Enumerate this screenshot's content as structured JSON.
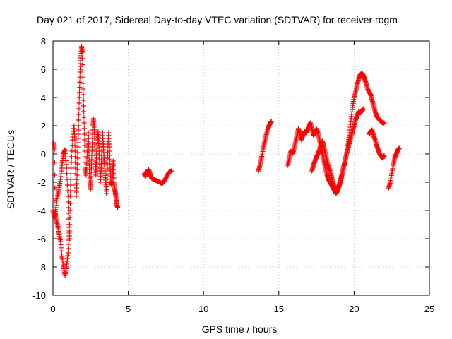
{
  "chart_data": {
    "type": "scatter",
    "title": "Day 021 of 2017, Sidereal Day-to-day VTEC variation (SDTVAR) for receiver rogm",
    "xlabel": "GPS time / hours",
    "ylabel": "SDTVAR / TECUs",
    "xlim": [
      0,
      25
    ],
    "ylim": [
      -10,
      8
    ],
    "xticks": [
      0,
      5,
      10,
      15,
      20,
      25
    ],
    "yticks": [
      -10,
      -8,
      -6,
      -4,
      -2,
      0,
      2,
      4,
      6,
      8
    ],
    "grid": true,
    "marker": "plus",
    "color": "#ff0000",
    "series": [
      {
        "name": "SDTVAR",
        "segments": [
          [
            [
              0.05,
              0.8
            ],
            [
              0.1,
              0.3
            ],
            [
              0.15,
              -4.2
            ],
            [
              0.2,
              -4.6
            ],
            [
              0.3,
              -5.0
            ],
            [
              0.4,
              -5.6
            ],
            [
              0.5,
              -6.2
            ],
            [
              0.6,
              -7.3
            ],
            [
              0.7,
              -8.0
            ],
            [
              0.8,
              -8.6
            ],
            [
              0.9,
              -8.0
            ],
            [
              1.0,
              -7.0
            ],
            [
              1.1,
              -5.5
            ],
            [
              1.15,
              -3.0
            ],
            [
              1.2,
              -1.0
            ],
            [
              1.3,
              1.0
            ],
            [
              1.4,
              2.0
            ],
            [
              1.45,
              1.0
            ],
            [
              1.5,
              -1.0
            ],
            [
              1.55,
              -3.0
            ],
            [
              1.6,
              -1.5
            ],
            [
              1.65,
              0.5
            ],
            [
              1.7,
              2.0
            ],
            [
              1.75,
              4.0
            ],
            [
              1.8,
              5.8
            ],
            [
              1.85,
              6.8
            ],
            [
              1.9,
              7.6
            ],
            [
              1.95,
              7.2
            ],
            [
              2.0,
              5.0
            ],
            [
              2.05,
              3.0
            ],
            [
              2.1,
              1.0
            ],
            [
              2.15,
              -1.0
            ],
            [
              2.2,
              -1.5
            ],
            [
              2.3,
              0.5
            ],
            [
              2.35,
              1.5
            ],
            [
              2.4,
              -0.5
            ],
            [
              2.45,
              -2.0
            ],
            [
              2.5,
              -2.5
            ],
            [
              2.55,
              -1.0
            ],
            [
              2.6,
              0.5
            ],
            [
              2.65,
              2.0
            ],
            [
              2.7,
              2.5
            ],
            [
              2.75,
              1.5
            ],
            [
              2.8,
              -0.5
            ],
            [
              2.85,
              -1.5
            ],
            [
              2.9,
              0.0
            ],
            [
              2.95,
              1.0
            ],
            [
              3.0,
              1.6
            ],
            [
              3.05,
              0.5
            ],
            [
              3.1,
              -1.0
            ],
            [
              3.15,
              -2.0
            ],
            [
              3.2,
              -1.0
            ],
            [
              3.25,
              0.5
            ],
            [
              3.3,
              1.5
            ],
            [
              3.35,
              0.5
            ],
            [
              3.4,
              -0.5
            ],
            [
              3.45,
              -1.2
            ],
            [
              3.5,
              -2.0
            ],
            [
              3.55,
              -2.8
            ],
            [
              3.6,
              -1.5
            ],
            [
              3.65,
              0.5
            ],
            [
              3.7,
              1.5
            ],
            [
              3.75,
              0.5
            ],
            [
              3.8,
              -1.0
            ],
            [
              3.85,
              -2.0
            ],
            [
              3.9,
              -2.2
            ],
            [
              3.95,
              -1.5
            ],
            [
              4.0,
              -0.5
            ],
            [
              4.05,
              -2.0
            ],
            [
              4.1,
              -2.5
            ],
            [
              4.15,
              -2.8
            ],
            [
              4.2,
              -3.2
            ],
            [
              4.25,
              -3.6
            ],
            [
              4.3,
              -3.8
            ]
          ],
          [
            [
              0.0,
              -4.0
            ],
            [
              0.1,
              -4.5
            ],
            [
              0.2,
              -3.8
            ],
            [
              0.3,
              -3.0
            ],
            [
              0.4,
              -2.5
            ],
            [
              0.5,
              -1.8
            ],
            [
              0.6,
              -0.8
            ],
            [
              0.7,
              0.0
            ],
            [
              0.8,
              0.3
            ],
            [
              0.9,
              -1.0
            ],
            [
              1.0,
              -3.0
            ],
            [
              1.05,
              -5.0
            ],
            [
              1.1,
              -6.0
            ]
          ],
          [
            [
              6.05,
              -1.4
            ],
            [
              6.15,
              -1.6
            ],
            [
              6.25,
              -1.3
            ],
            [
              6.35,
              -1.1
            ],
            [
              6.45,
              -1.4
            ],
            [
              6.55,
              -1.7
            ],
            [
              6.7,
              -1.8
            ],
            [
              6.9,
              -1.9
            ],
            [
              7.1,
              -2.0
            ],
            [
              7.25,
              -2.1
            ],
            [
              7.4,
              -1.9
            ],
            [
              7.55,
              -1.6
            ],
            [
              7.7,
              -1.3
            ],
            [
              7.85,
              -1.2
            ]
          ],
          [
            [
              13.65,
              -1.2
            ],
            [
              13.75,
              -0.8
            ],
            [
              13.85,
              -0.3
            ],
            [
              13.95,
              0.3
            ],
            [
              14.05,
              0.8
            ],
            [
              14.15,
              1.3
            ],
            [
              14.25,
              1.7
            ],
            [
              14.35,
              2.0
            ],
            [
              14.45,
              2.2
            ],
            [
              14.5,
              2.3
            ]
          ],
          [
            [
              15.6,
              -0.8
            ],
            [
              15.7,
              -0.3
            ],
            [
              15.8,
              0.2
            ],
            [
              15.9,
              0.0
            ],
            [
              16.0,
              0.3
            ],
            [
              16.1,
              0.8
            ],
            [
              16.2,
              1.3
            ],
            [
              16.3,
              1.8
            ],
            [
              16.4,
              1.5
            ],
            [
              16.5,
              1.0
            ],
            [
              16.6,
              1.3
            ],
            [
              16.7,
              1.6
            ],
            [
              16.8,
              1.5
            ],
            [
              16.9,
              1.7
            ],
            [
              17.0,
              2.0
            ],
            [
              17.1,
              2.2
            ],
            [
              17.2,
              1.8
            ],
            [
              17.3,
              1.3
            ],
            [
              17.4,
              1.5
            ],
            [
              17.5,
              1.8
            ],
            [
              17.6,
              1.5
            ],
            [
              17.7,
              1.0
            ],
            [
              17.8,
              0.5
            ],
            [
              17.9,
              0.0
            ],
            [
              18.0,
              -0.5
            ],
            [
              18.1,
              -1.0
            ],
            [
              18.2,
              -1.5
            ],
            [
              18.3,
              -1.8
            ],
            [
              18.4,
              -2.0
            ],
            [
              18.5,
              -2.2
            ],
            [
              18.6,
              -2.4
            ],
            [
              18.7,
              -2.6
            ],
            [
              18.8,
              -2.8
            ],
            [
              18.9,
              -2.6
            ],
            [
              19.0,
              -2.3
            ],
            [
              19.1,
              -2.0
            ],
            [
              19.2,
              -1.5
            ],
            [
              19.3,
              -1.0
            ],
            [
              19.4,
              -0.5
            ],
            [
              19.5,
              0.0
            ],
            [
              19.6,
              0.4
            ],
            [
              19.7,
              0.8
            ],
            [
              19.8,
              1.2
            ],
            [
              19.9,
              1.6
            ],
            [
              20.0,
              2.0
            ],
            [
              20.1,
              2.4
            ],
            [
              20.2,
              2.7
            ],
            [
              20.3,
              3.0
            ],
            [
              20.4,
              2.9
            ],
            [
              20.5,
              3.0
            ],
            [
              20.6,
              3.2
            ]
          ],
          [
            [
              17.2,
              -1.2
            ],
            [
              17.3,
              -0.8
            ],
            [
              17.4,
              -0.5
            ],
            [
              17.5,
              -0.2
            ],
            [
              17.6,
              0.0
            ],
            [
              17.7,
              0.3
            ],
            [
              17.8,
              0.7
            ],
            [
              17.9,
              0.9
            ],
            [
              18.0,
              0.5
            ],
            [
              18.1,
              0.0
            ],
            [
              18.2,
              -0.5
            ],
            [
              18.3,
              -0.9
            ],
            [
              18.4,
              -1.2
            ],
            [
              18.5,
              -1.6
            ],
            [
              18.6,
              -2.0
            ],
            [
              18.7,
              -2.4
            ],
            [
              18.8,
              -2.6
            ],
            [
              18.9,
              -2.5
            ],
            [
              19.0,
              -2.2
            ],
            [
              19.1,
              -1.8
            ],
            [
              19.2,
              -1.4
            ],
            [
              19.3,
              -0.9
            ],
            [
              19.4,
              -0.5
            ],
            [
              19.5,
              0.0
            ],
            [
              19.6,
              0.7
            ],
            [
              19.7,
              1.5
            ],
            [
              19.8,
              2.5
            ],
            [
              19.9,
              3.3
            ],
            [
              20.0,
              4.0
            ],
            [
              20.1,
              4.4
            ],
            [
              20.2,
              4.9
            ],
            [
              20.3,
              5.3
            ],
            [
              20.4,
              5.6
            ],
            [
              20.5,
              5.7
            ],
            [
              20.6,
              5.6
            ],
            [
              20.7,
              5.3
            ],
            [
              20.8,
              5.0
            ],
            [
              20.9,
              4.6
            ],
            [
              21.0,
              4.4
            ],
            [
              21.1,
              4.2
            ],
            [
              21.2,
              3.8
            ],
            [
              21.3,
              3.4
            ],
            [
              21.4,
              3.0
            ],
            [
              21.5,
              2.7
            ],
            [
              21.6,
              2.5
            ],
            [
              21.7,
              2.4
            ],
            [
              21.8,
              2.3
            ],
            [
              21.9,
              2.2
            ],
            [
              22.0,
              2.2
            ]
          ],
          [
            [
              21.0,
              1.4
            ],
            [
              21.1,
              1.6
            ],
            [
              21.2,
              1.7
            ],
            [
              21.3,
              1.3
            ],
            [
              21.4,
              1.0
            ],
            [
              21.5,
              0.6
            ],
            [
              21.6,
              0.3
            ],
            [
              21.7,
              0.0
            ],
            [
              21.8,
              -0.2
            ],
            [
              21.9,
              -0.3
            ],
            [
              22.0,
              -0.1
            ]
          ],
          [
            [
              22.3,
              -2.4
            ],
            [
              22.4,
              -2.0
            ],
            [
              22.5,
              -1.4
            ],
            [
              22.6,
              -0.8
            ],
            [
              22.7,
              -0.3
            ],
            [
              22.8,
              0.0
            ],
            [
              22.9,
              0.3
            ],
            [
              23.0,
              0.4
            ]
          ]
        ]
      }
    ]
  }
}
